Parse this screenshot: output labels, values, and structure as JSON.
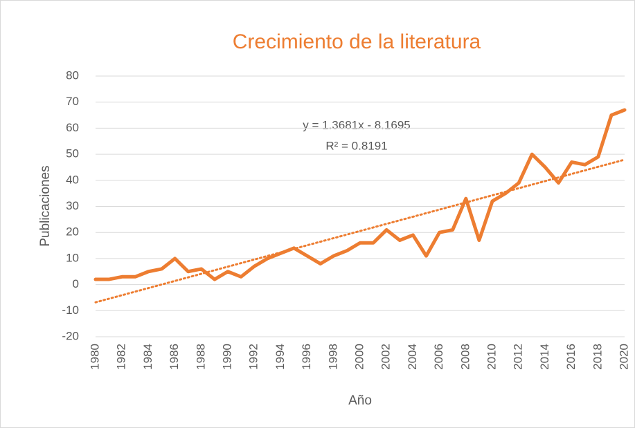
{
  "chart_data": {
    "type": "line",
    "title": "Crecimiento de la literatura",
    "x_label": "Año",
    "y_label": "Publicaciones",
    "x": [
      1980,
      1981,
      1982,
      1983,
      1984,
      1985,
      1986,
      1987,
      1988,
      1989,
      1990,
      1991,
      1992,
      1993,
      1994,
      1995,
      1996,
      1997,
      1998,
      1999,
      2000,
      2001,
      2002,
      2003,
      2004,
      2005,
      2006,
      2007,
      2008,
      2009,
      2010,
      2011,
      2012,
      2013,
      2014,
      2015,
      2016,
      2017,
      2018,
      2019,
      2020
    ],
    "series": [
      {
        "name": "Publicaciones",
        "color": "#ed7d31",
        "values": [
          2,
          2,
          3,
          3,
          5,
          6,
          10,
          5,
          6,
          2,
          5,
          3,
          7,
          10,
          12,
          14,
          11,
          8,
          11,
          13,
          16,
          16,
          21,
          17,
          19,
          11,
          20,
          21,
          33,
          17,
          32,
          35,
          39,
          50,
          45,
          39,
          47,
          46,
          49,
          65,
          67
        ]
      }
    ],
    "trendline": {
      "slope": 1.3681,
      "intercept": -8.1695,
      "color": "#ed7d31",
      "label": "y = 1.3681x - 8.1695",
      "r2_label": "R² = 0.8191"
    },
    "xlim": [
      1980,
      2020
    ],
    "xticks": [
      1980,
      1982,
      1984,
      1986,
      1988,
      1990,
      1992,
      1994,
      1996,
      1998,
      2000,
      2002,
      2004,
      2006,
      2008,
      2010,
      2012,
      2014,
      2016,
      2018,
      2020
    ],
    "ylim": [
      -20,
      80
    ],
    "yticks": [
      -20,
      -10,
      0,
      10,
      20,
      30,
      40,
      50,
      60,
      70,
      80
    ],
    "grid": true
  }
}
